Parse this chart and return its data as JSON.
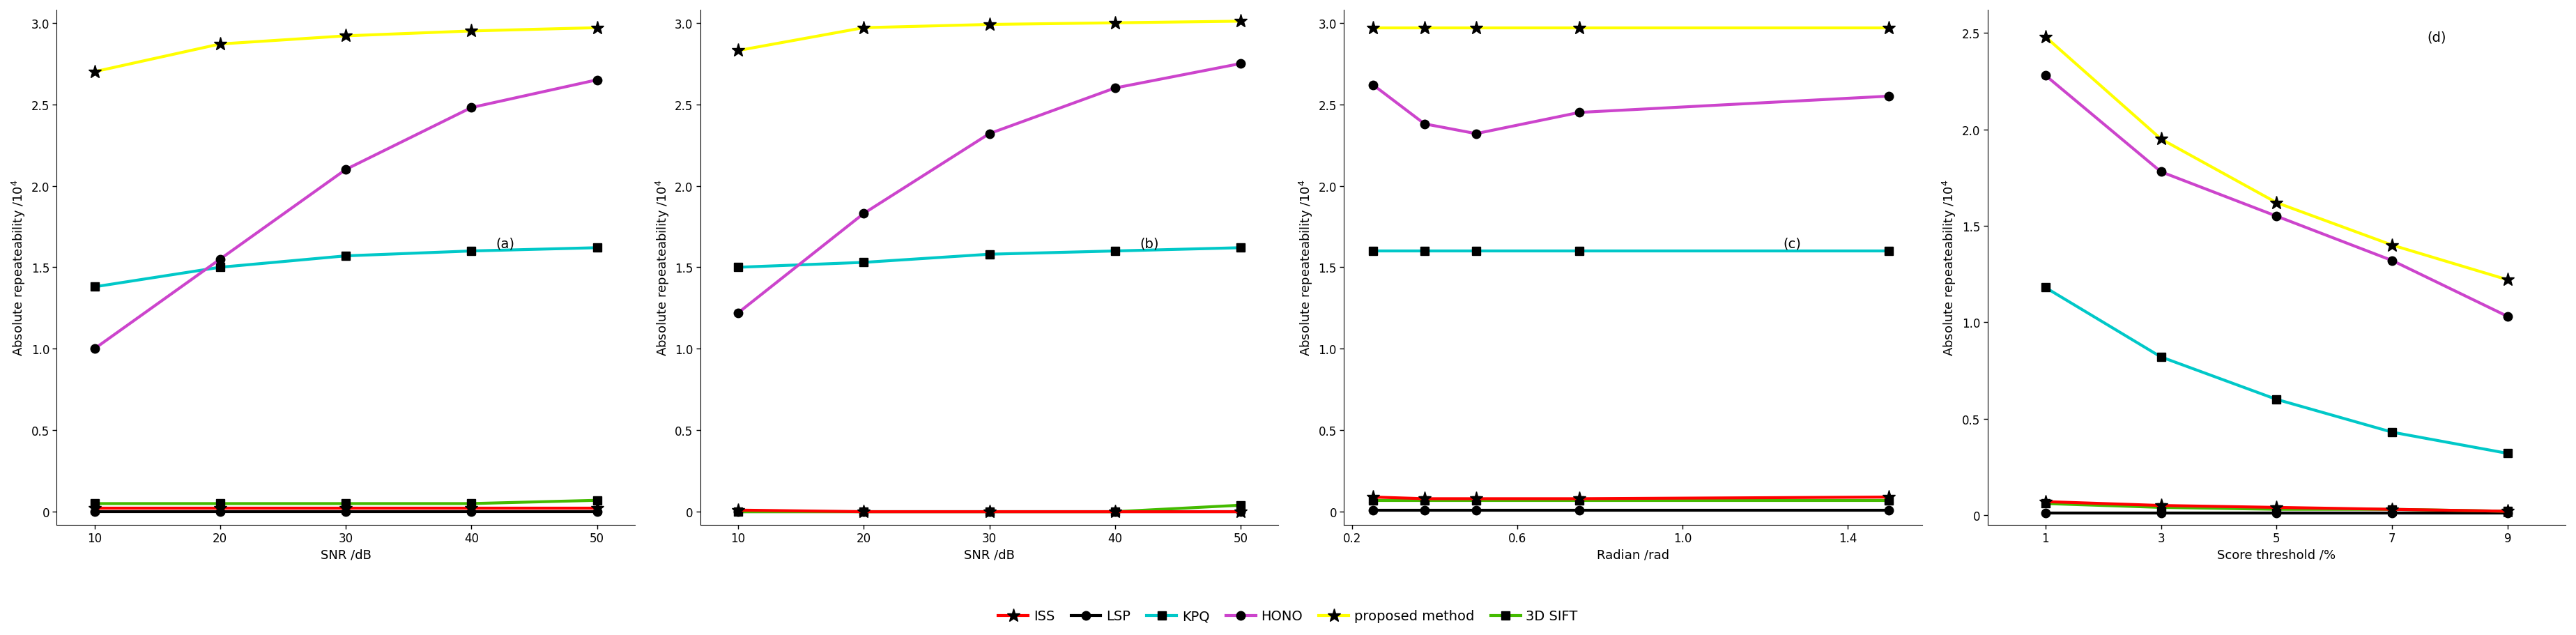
{
  "panel_a": {
    "title": "(a)",
    "xlabel": "SNR /dB",
    "x": [
      10,
      20,
      30,
      40,
      50
    ],
    "ISS": [
      0.02,
      0.02,
      0.02,
      0.02,
      0.02
    ],
    "LSP": [
      0.0,
      0.0,
      0.0,
      0.0,
      0.0
    ],
    "KPQ": [
      1.38,
      1.5,
      1.57,
      1.6,
      1.62
    ],
    "HONO": [
      1.0,
      1.55,
      2.1,
      2.48,
      2.65
    ],
    "proposed": [
      2.7,
      2.87,
      2.92,
      2.95,
      2.97
    ],
    "3DSIFT": [
      0.05,
      0.05,
      0.05,
      0.05,
      0.07
    ]
  },
  "panel_b": {
    "title": "(b)",
    "xlabel": "SNR /dB",
    "x": [
      10,
      20,
      30,
      40,
      50
    ],
    "ISS": [
      0.01,
      0.0,
      0.0,
      0.0,
      0.0
    ],
    "LSP": [
      0.0,
      0.0,
      0.0,
      0.0,
      0.0
    ],
    "KPQ": [
      1.5,
      1.53,
      1.58,
      1.6,
      1.62
    ],
    "HONO": [
      1.22,
      1.83,
      2.32,
      2.6,
      2.75
    ],
    "proposed": [
      2.83,
      2.97,
      2.99,
      3.0,
      3.01
    ],
    "3DSIFT": [
      0.0,
      0.0,
      0.0,
      0.0,
      0.04
    ]
  },
  "panel_c": {
    "title": "(c)",
    "xlabel": "Radian /rad",
    "x": [
      0.25,
      0.375,
      0.5,
      0.75,
      1.5
    ],
    "ISS": [
      0.09,
      0.08,
      0.08,
      0.08,
      0.09
    ],
    "LSP": [
      0.01,
      0.01,
      0.01,
      0.01,
      0.01
    ],
    "KPQ": [
      1.6,
      1.6,
      1.6,
      1.6,
      1.6
    ],
    "HONO": [
      2.62,
      2.38,
      2.32,
      2.45,
      2.55
    ],
    "proposed": [
      2.97,
      2.97,
      2.97,
      2.97,
      2.97
    ],
    "3DSIFT": [
      0.07,
      0.07,
      0.07,
      0.07,
      0.07
    ]
  },
  "panel_d": {
    "title": "(d)",
    "xlabel": "Score threshold /%",
    "x": [
      1,
      3,
      5,
      7,
      9
    ],
    "ISS": [
      0.07,
      0.05,
      0.04,
      0.03,
      0.02
    ],
    "LSP": [
      0.01,
      0.01,
      0.01,
      0.01,
      0.01
    ],
    "KPQ": [
      1.18,
      0.82,
      0.6,
      0.43,
      0.32
    ],
    "HONO": [
      2.28,
      1.78,
      1.55,
      1.32,
      1.03
    ],
    "proposed": [
      2.48,
      1.95,
      1.62,
      1.4,
      1.22
    ],
    "3DSIFT": [
      0.06,
      0.04,
      0.03,
      0.03,
      0.02
    ]
  },
  "colors": {
    "ISS": "#FF0000",
    "LSP": "#000000",
    "KPQ": "#00C8C8",
    "HONO": "#CC44CC",
    "proposed": "#FFFF00",
    "3DSIFT": "#44BB00"
  },
  "lw": 3.0,
  "marker_size_star": 14,
  "marker_size_circle": 9,
  "marker_size_square": 9,
  "title_fontsize": 14,
  "tick_fontsize": 12,
  "label_fontsize": 13,
  "legend_fontsize": 14
}
